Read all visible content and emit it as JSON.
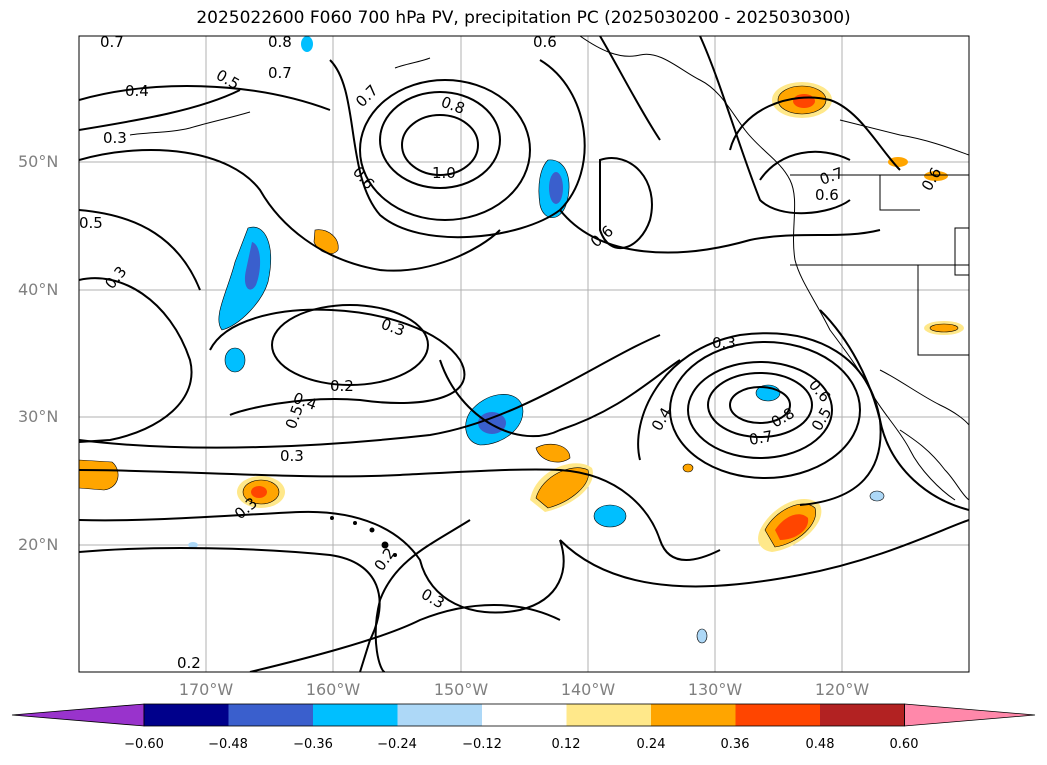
{
  "title": "2025022600 F060 700 hPa PV, precipitation PC (2025030200 - 2025030300)",
  "map": {
    "lat_labels": [
      {
        "text": "50°N",
        "lat": 50
      },
      {
        "text": "40°N",
        "lat": 40
      },
      {
        "text": "30°N",
        "lat": 30
      },
      {
        "text": "20°N",
        "lat": 20
      }
    ],
    "lon_labels": [
      {
        "text": "170°W",
        "lon": -170
      },
      {
        "text": "160°W",
        "lon": -160
      },
      {
        "text": "150°W",
        "lon": -150
      },
      {
        "text": "140°W",
        "lon": -140
      },
      {
        "text": "130°W",
        "lon": -130
      },
      {
        "text": "120°W",
        "lon": -120
      }
    ],
    "contour_labels": [
      "0.7",
      "0.8",
      "0.6",
      "0.5",
      "0.4",
      "0.7",
      "0.3",
      "0.7",
      "0.8",
      "1.0",
      "0.6",
      "0.5",
      "0.3",
      "0.6",
      "0.3",
      "0.2",
      "0.4",
      "0.5",
      "0.3",
      "0.3",
      "0.2",
      "0.3",
      "0.2",
      "0.3",
      "0.4",
      "0.7",
      "0.8",
      "0.6",
      "0.5",
      "0.7",
      "0.6",
      "0.6"
    ]
  },
  "colorbar": {
    "ticks": [
      "−0.60",
      "−0.48",
      "−0.36",
      "−0.24",
      "−0.12",
      "0.12",
      "0.24",
      "0.36",
      "0.48",
      "0.60"
    ],
    "colors": [
      "#9933cc",
      "#00008b",
      "#3a5fcd",
      "#00bfff",
      "#add8f7",
      "#ffffff",
      "#ffe88a",
      "#ffa500",
      "#ff4500",
      "#b22222",
      "#ff88aa"
    ]
  }
}
